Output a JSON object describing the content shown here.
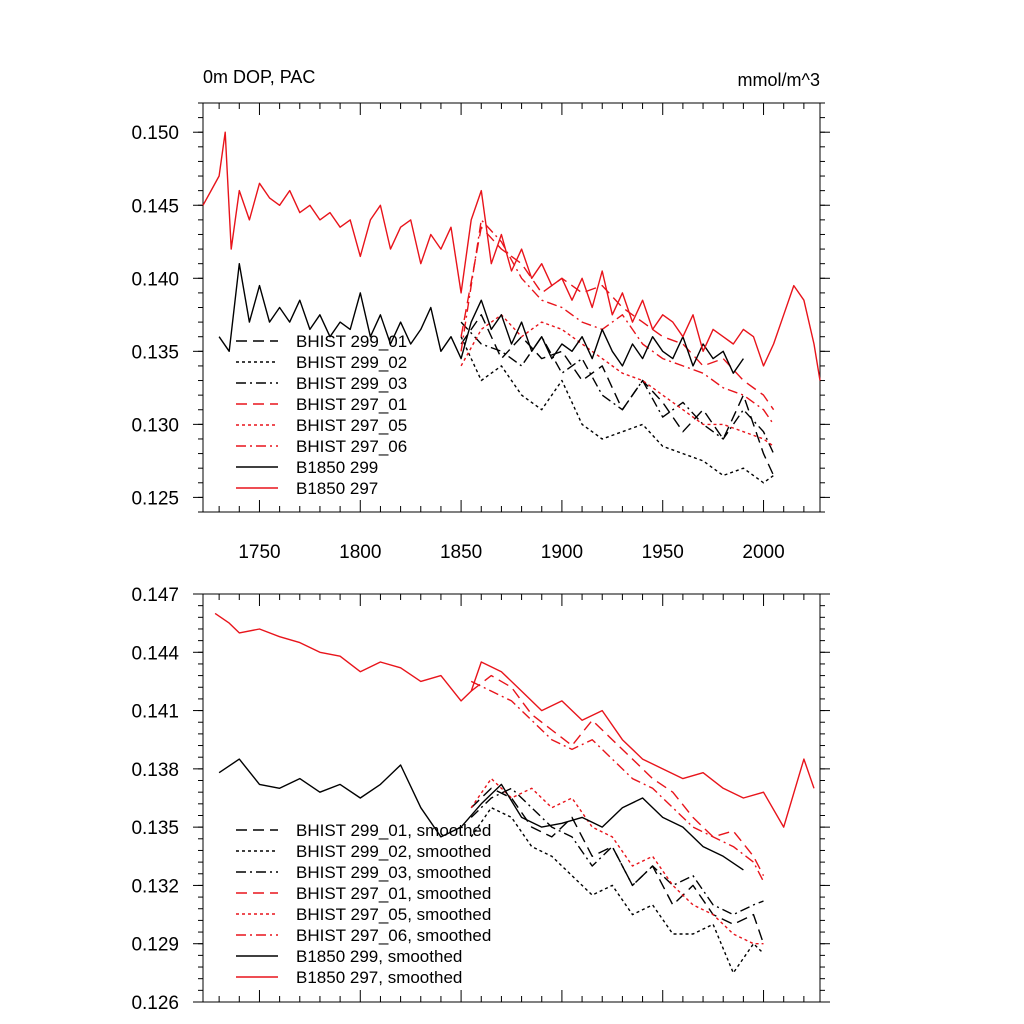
{
  "colors": {
    "black": "#000000",
    "red": "#e8141b"
  },
  "chart_data": [
    {
      "type": "line",
      "title": "0m DOP, PAC",
      "units": "mmol/m^3",
      "xlim": [
        1722,
        2028
      ],
      "ylim": [
        0.124,
        0.152
      ],
      "xticks": [
        1750,
        1800,
        1850,
        1900,
        1950,
        2000
      ],
      "xtick_labels": [
        "1750",
        "1800",
        "1850",
        "1900",
        "1950",
        "2000"
      ],
      "yticks": [
        0.125,
        0.13,
        0.135,
        0.14,
        0.145,
        0.15
      ],
      "ytick_labels": [
        "0.125",
        "0.130",
        "0.135",
        "0.140",
        "0.145",
        "0.150"
      ],
      "legend": [
        "BHIST 299_01",
        "BHIST 299_02",
        "BHIST 299_03",
        "BHIST 297_01",
        "BHIST 297_05",
        "BHIST 297_06",
        "B1850 299",
        "B1850 297"
      ],
      "series": [
        {
          "name": "BHIST 299_01",
          "color": "black",
          "dash": "long",
          "x": [
            1850,
            1860,
            1870,
            1880,
            1890,
            1900,
            1910,
            1920,
            1930,
            1940,
            1950,
            1960,
            1970,
            1980,
            1990,
            2000,
            2005
          ],
          "y": [
            0.1355,
            0.1375,
            0.1345,
            0.136,
            0.1345,
            0.135,
            0.133,
            0.134,
            0.131,
            0.133,
            0.1315,
            0.1295,
            0.131,
            0.129,
            0.132,
            0.128,
            0.1265
          ]
        },
        {
          "name": "BHIST 299_02",
          "color": "black",
          "dash": "dot",
          "x": [
            1850,
            1860,
            1870,
            1880,
            1890,
            1900,
            1910,
            1920,
            1930,
            1940,
            1950,
            1960,
            1970,
            1980,
            1990,
            2000,
            2005
          ],
          "y": [
            0.136,
            0.133,
            0.134,
            0.132,
            0.131,
            0.133,
            0.13,
            0.129,
            0.1295,
            0.13,
            0.1285,
            0.128,
            0.1275,
            0.1265,
            0.127,
            0.126,
            0.1265
          ]
        },
        {
          "name": "BHIST 299_03",
          "color": "black",
          "dash": "dashdot",
          "x": [
            1850,
            1860,
            1870,
            1880,
            1890,
            1900,
            1910,
            1920,
            1930,
            1940,
            1950,
            1960,
            1970,
            1980,
            1990,
            2000,
            2005
          ],
          "y": [
            0.137,
            0.1355,
            0.135,
            0.134,
            0.136,
            0.1335,
            0.1345,
            0.132,
            0.131,
            0.133,
            0.1305,
            0.1315,
            0.13,
            0.129,
            0.131,
            0.1295,
            0.128
          ]
        },
        {
          "name": "BHIST 297_01",
          "color": "red",
          "dash": "long",
          "x": [
            1850,
            1860,
            1870,
            1880,
            1890,
            1900,
            1910,
            1920,
            1930,
            1940,
            1950,
            1960,
            1970,
            1980,
            1990,
            2000,
            2005
          ],
          "y": [
            0.136,
            0.1435,
            0.142,
            0.141,
            0.139,
            0.14,
            0.139,
            0.1395,
            0.138,
            0.137,
            0.136,
            0.1355,
            0.134,
            0.1345,
            0.133,
            0.132,
            0.131
          ]
        },
        {
          "name": "BHIST 297_05",
          "color": "red",
          "dash": "dot",
          "x": [
            1850,
            1860,
            1870,
            1880,
            1890,
            1900,
            1910,
            1920,
            1930,
            1940,
            1950,
            1960,
            1970,
            1980,
            1990,
            2000,
            2005
          ],
          "y": [
            0.134,
            0.1365,
            0.1375,
            0.136,
            0.137,
            0.1365,
            0.1355,
            0.1345,
            0.1335,
            0.133,
            0.132,
            0.131,
            0.13,
            0.13,
            0.1295,
            0.129,
            0.1285
          ]
        },
        {
          "name": "BHIST 297_06",
          "color": "red",
          "dash": "dashdot",
          "x": [
            1850,
            1860,
            1870,
            1880,
            1890,
            1900,
            1910,
            1920,
            1930,
            1940,
            1950,
            1960,
            1970,
            1980,
            1990,
            2000,
            2005
          ],
          "y": [
            0.135,
            0.144,
            0.1425,
            0.14,
            0.1385,
            0.138,
            0.137,
            0.1365,
            0.1375,
            0.1355,
            0.1345,
            0.134,
            0.1335,
            0.1325,
            0.132,
            0.131,
            0.13
          ]
        },
        {
          "name": "B1850 299",
          "color": "black",
          "dash": "solid",
          "x": [
            1730,
            1735,
            1740,
            1745,
            1750,
            1755,
            1760,
            1765,
            1770,
            1775,
            1780,
            1785,
            1790,
            1795,
            1800,
            1805,
            1810,
            1815,
            1820,
            1825,
            1830,
            1835,
            1840,
            1845,
            1850,
            1855,
            1860,
            1865,
            1870,
            1875,
            1880,
            1885,
            1890,
            1895,
            1900,
            1905,
            1910,
            1915,
            1920,
            1925,
            1930,
            1935,
            1940,
            1945,
            1950,
            1955,
            1960,
            1965,
            1970,
            1975,
            1980,
            1985,
            1990
          ],
          "y": [
            0.136,
            0.135,
            0.141,
            0.137,
            0.1395,
            0.137,
            0.138,
            0.137,
            0.1385,
            0.1365,
            0.1375,
            0.136,
            0.137,
            0.1365,
            0.139,
            0.136,
            0.1375,
            0.1355,
            0.137,
            0.1355,
            0.1365,
            0.138,
            0.135,
            0.136,
            0.1345,
            0.137,
            0.1385,
            0.1365,
            0.1375,
            0.1355,
            0.137,
            0.135,
            0.136,
            0.1345,
            0.1355,
            0.135,
            0.136,
            0.1345,
            0.1365,
            0.135,
            0.134,
            0.1355,
            0.1345,
            0.136,
            0.135,
            0.1345,
            0.136,
            0.134,
            0.1355,
            0.1345,
            0.135,
            0.1335,
            0.1345
          ]
        },
        {
          "name": "B1850 297",
          "color": "red",
          "dash": "solid",
          "x": [
            1722,
            1726,
            1730,
            1733,
            1736,
            1740,
            1745,
            1750,
            1755,
            1760,
            1765,
            1770,
            1775,
            1780,
            1785,
            1790,
            1795,
            1800,
            1805,
            1810,
            1815,
            1820,
            1825,
            1830,
            1835,
            1840,
            1845,
            1850,
            1855,
            1860,
            1865,
            1870,
            1875,
            1880,
            1885,
            1890,
            1895,
            1900,
            1905,
            1910,
            1915,
            1920,
            1925,
            1930,
            1935,
            1940,
            1945,
            1950,
            1955,
            1960,
            1965,
            1970,
            1975,
            1980,
            1985,
            1990,
            1995,
            2000,
            2005,
            2010,
            2015,
            2020,
            2025,
            2028
          ],
          "y": [
            0.145,
            0.146,
            0.147,
            0.15,
            0.142,
            0.146,
            0.144,
            0.1465,
            0.1455,
            0.145,
            0.146,
            0.1445,
            0.145,
            0.144,
            0.1445,
            0.1435,
            0.144,
            0.1415,
            0.144,
            0.145,
            0.142,
            0.1435,
            0.144,
            0.141,
            0.143,
            0.142,
            0.1435,
            0.139,
            0.144,
            0.146,
            0.141,
            0.143,
            0.1405,
            0.142,
            0.14,
            0.141,
            0.1395,
            0.14,
            0.1385,
            0.14,
            0.138,
            0.1405,
            0.1375,
            0.139,
            0.137,
            0.1385,
            0.1365,
            0.1375,
            0.137,
            0.136,
            0.1375,
            0.135,
            0.1365,
            0.136,
            0.1355,
            0.1365,
            0.136,
            0.134,
            0.1355,
            0.1375,
            0.1395,
            0.1385,
            0.1355,
            0.133
          ]
        }
      ]
    },
    {
      "type": "line",
      "title": "",
      "xlim": [
        1722,
        2028
      ],
      "ylim": [
        0.126,
        0.147
      ],
      "xticks": [
        1750,
        1800,
        1850,
        1900,
        1950,
        2000
      ],
      "xtick_labels": [],
      "yticks": [
        0.126,
        0.129,
        0.132,
        0.135,
        0.138,
        0.141,
        0.144,
        0.147
      ],
      "ytick_labels": [
        "0.126",
        "0.129",
        "0.132",
        "0.135",
        "0.138",
        "0.141",
        "0.144",
        "0.147"
      ],
      "legend": [
        "BHIST 299_01, smoothed",
        "BHIST 299_02, smoothed",
        "BHIST 299_03, smoothed",
        "BHIST 297_01, smoothed",
        "BHIST 297_05, smoothed",
        "BHIST 297_06, smoothed",
        "B1850 299, smoothed",
        "B1850 297, smoothed"
      ],
      "series": [
        {
          "name": "BHIST 299_01, smoothed",
          "color": "black",
          "dash": "long",
          "x": [
            1855,
            1865,
            1875,
            1885,
            1895,
            1905,
            1915,
            1925,
            1935,
            1945,
            1955,
            1965,
            1975,
            1985,
            1995,
            2000
          ],
          "y": [
            0.136,
            0.137,
            0.1365,
            0.135,
            0.1345,
            0.1355,
            0.1335,
            0.134,
            0.132,
            0.133,
            0.131,
            0.132,
            0.1305,
            0.13,
            0.1305,
            0.129
          ]
        },
        {
          "name": "BHIST 299_02, smoothed",
          "color": "black",
          "dash": "dot",
          "x": [
            1855,
            1865,
            1875,
            1885,
            1895,
            1905,
            1915,
            1925,
            1935,
            1945,
            1955,
            1965,
            1975,
            1985,
            1995,
            2000
          ],
          "y": [
            0.1345,
            0.136,
            0.1355,
            0.134,
            0.1335,
            0.1325,
            0.1315,
            0.132,
            0.1305,
            0.131,
            0.1295,
            0.1295,
            0.13,
            0.1275,
            0.129,
            0.1285
          ]
        },
        {
          "name": "BHIST 299_03, smoothed",
          "color": "black",
          "dash": "dashdot",
          "x": [
            1855,
            1865,
            1875,
            1885,
            1895,
            1905,
            1915,
            1925,
            1935,
            1945,
            1955,
            1965,
            1975,
            1985,
            1995,
            2000
          ],
          "y": [
            0.1355,
            0.1365,
            0.137,
            0.136,
            0.135,
            0.1345,
            0.133,
            0.134,
            0.132,
            0.133,
            0.132,
            0.1325,
            0.131,
            0.1305,
            0.131,
            0.1312
          ]
        },
        {
          "name": "BHIST 297_01, smoothed",
          "color": "red",
          "dash": "long",
          "x": [
            1855,
            1865,
            1875,
            1885,
            1895,
            1905,
            1915,
            1925,
            1935,
            1945,
            1955,
            1965,
            1975,
            1985,
            1995,
            2000
          ],
          "y": [
            0.142,
            0.1428,
            0.1422,
            0.1408,
            0.14,
            0.1392,
            0.1405,
            0.1395,
            0.1385,
            0.1375,
            0.1368,
            0.1355,
            0.1345,
            0.1348,
            0.1335,
            0.1325
          ]
        },
        {
          "name": "BHIST 297_05, smoothed",
          "color": "red",
          "dash": "dot",
          "x": [
            1855,
            1865,
            1875,
            1885,
            1895,
            1905,
            1915,
            1925,
            1935,
            1945,
            1955,
            1965,
            1975,
            1985,
            1995,
            2000
          ],
          "y": [
            0.136,
            0.1375,
            0.1365,
            0.137,
            0.136,
            0.1365,
            0.135,
            0.1345,
            0.133,
            0.1335,
            0.132,
            0.131,
            0.1305,
            0.1295,
            0.129,
            0.129
          ]
        },
        {
          "name": "BHIST 297_06, smoothed",
          "color": "red",
          "dash": "dashdot",
          "x": [
            1855,
            1865,
            1875,
            1885,
            1895,
            1905,
            1915,
            1925,
            1935,
            1945,
            1955,
            1965,
            1975,
            1985,
            1995,
            2000
          ],
          "y": [
            0.1425,
            0.142,
            0.1415,
            0.1405,
            0.1395,
            0.139,
            0.1395,
            0.1385,
            0.1375,
            0.137,
            0.136,
            0.135,
            0.1345,
            0.134,
            0.1332,
            0.1322
          ]
        },
        {
          "name": "B1850 299, smoothed",
          "color": "black",
          "dash": "solid",
          "x": [
            1730,
            1740,
            1750,
            1760,
            1770,
            1780,
            1790,
            1800,
            1810,
            1820,
            1830,
            1840,
            1850,
            1860,
            1870,
            1880,
            1890,
            1900,
            1910,
            1920,
            1930,
            1940,
            1950,
            1960,
            1970,
            1980,
            1990
          ],
          "y": [
            0.1378,
            0.1385,
            0.1372,
            0.137,
            0.1375,
            0.1368,
            0.1372,
            0.1365,
            0.1372,
            0.1382,
            0.136,
            0.1345,
            0.135,
            0.1362,
            0.1372,
            0.1355,
            0.135,
            0.1352,
            0.1355,
            0.135,
            0.136,
            0.1365,
            0.1355,
            0.135,
            0.134,
            0.1335,
            0.1328
          ]
        },
        {
          "name": "B1850 297, smoothed",
          "color": "red",
          "dash": "solid",
          "x": [
            1728,
            1735,
            1740,
            1750,
            1760,
            1770,
            1780,
            1790,
            1800,
            1810,
            1820,
            1830,
            1840,
            1850,
            1855,
            1860,
            1870,
            1880,
            1890,
            1900,
            1910,
            1920,
            1930,
            1940,
            1950,
            1960,
            1970,
            1980,
            1990,
            2000,
            2010,
            2020,
            2025
          ],
          "y": [
            0.146,
            0.1455,
            0.145,
            0.1452,
            0.1448,
            0.1445,
            0.144,
            0.1438,
            0.143,
            0.1435,
            0.1432,
            0.1425,
            0.1428,
            0.1415,
            0.142,
            0.1435,
            0.143,
            0.142,
            0.141,
            0.1415,
            0.1405,
            0.141,
            0.1395,
            0.1385,
            0.138,
            0.1375,
            0.1378,
            0.137,
            0.1365,
            0.1368,
            0.135,
            0.1385,
            0.137
          ]
        }
      ]
    }
  ]
}
